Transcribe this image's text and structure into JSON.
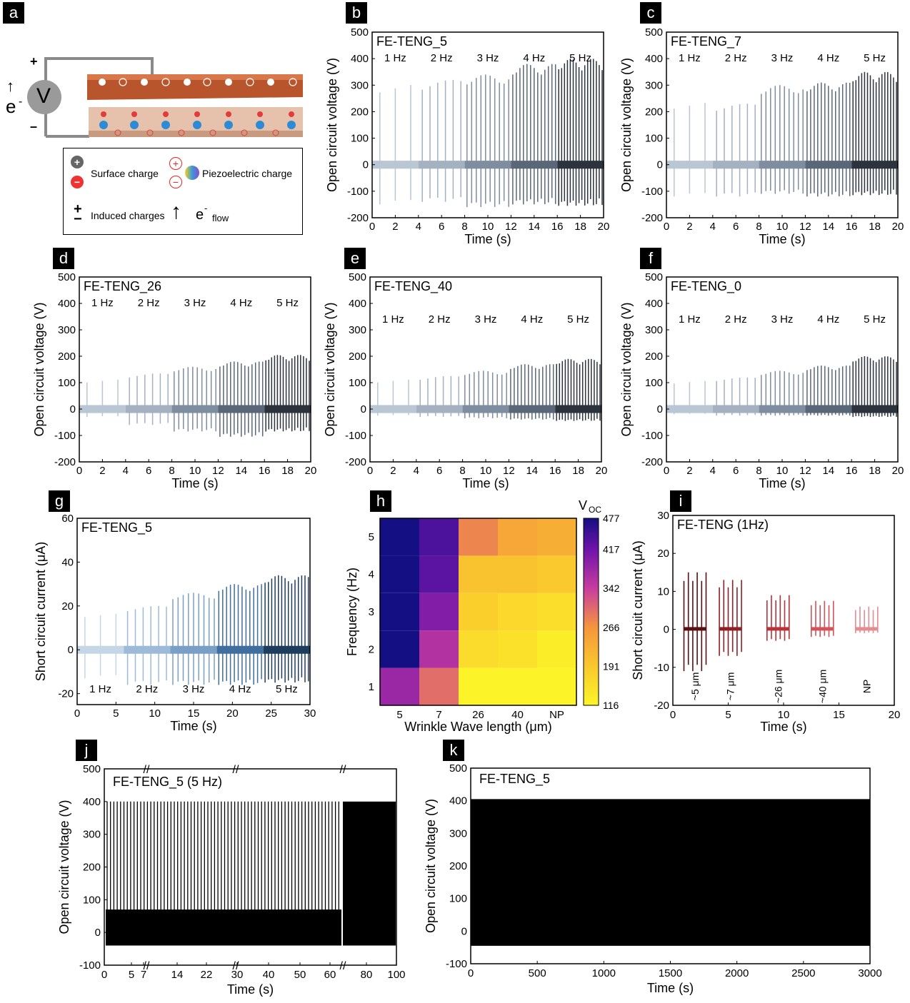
{
  "panel_letters": [
    "a",
    "b",
    "c",
    "d",
    "e",
    "f",
    "g",
    "h",
    "i",
    "j",
    "k"
  ],
  "schematic": {
    "surface_charge": "Surface charge",
    "piezo_charge": "Piezoelectric charge",
    "induced_charges": "Induced charges",
    "flow_e": "e",
    "flow_sup": "-",
    "flow_sub": "flow",
    "voltmeter": "V",
    "plus": "+",
    "minus": "–",
    "electron": "e",
    "electron_sup": "-"
  },
  "chart_data": [
    {
      "id": "b",
      "type": "line",
      "title": "FE-TENG_5",
      "xlabel": "Time (s)",
      "ylabel": "Open circuit voltage (V)",
      "xlim": [
        0,
        20
      ],
      "ylim": [
        -200,
        500
      ],
      "xticks": [
        0,
        2,
        4,
        6,
        8,
        10,
        12,
        14,
        16,
        18,
        20
      ],
      "yticks": [
        -200,
        -100,
        0,
        100,
        200,
        300,
        400,
        500
      ],
      "freq_labels": [
        "1 Hz",
        "2 Hz",
        "3 Hz",
        "4 Hz",
        "5 Hz"
      ],
      "peak_pos": [
        310,
        320,
        340,
        380,
        400
      ],
      "peak_neg": [
        -150,
        -140,
        -160,
        -150,
        -155
      ],
      "series_colors": [
        "#b9c6d3",
        "#a3b1c1",
        "#7f8da0",
        "#5a6778",
        "#2c333d"
      ]
    },
    {
      "id": "c",
      "type": "line",
      "title": "FE-TENG_7",
      "xlabel": "Time (s)",
      "ylabel": "Open circuit voltage (V)",
      "xlim": [
        0,
        20
      ],
      "ylim": [
        -200,
        500
      ],
      "xticks": [
        0,
        2,
        4,
        6,
        8,
        10,
        12,
        14,
        16,
        18,
        20
      ],
      "yticks": [
        -200,
        -100,
        0,
        100,
        200,
        300,
        400,
        500
      ],
      "freq_labels": [
        "1 Hz",
        "2 Hz",
        "3 Hz",
        "4 Hz",
        "5 Hz"
      ],
      "peak_pos": [
        240,
        230,
        300,
        310,
        350
      ],
      "peak_neg": [
        -120,
        -120,
        -110,
        -120,
        -115
      ],
      "series_colors": [
        "#b9c6d3",
        "#a3b1c1",
        "#7f8da0",
        "#5a6778",
        "#2c333d"
      ]
    },
    {
      "id": "d",
      "type": "line",
      "title": "FE-TENG_26",
      "xlabel": "Time (s)",
      "ylabel": "Open circuit voltage (V)",
      "xlim": [
        0,
        20
      ],
      "ylim": [
        -200,
        500
      ],
      "xticks": [
        0,
        2,
        4,
        6,
        8,
        10,
        12,
        14,
        16,
        18,
        20
      ],
      "yticks": [
        -200,
        -100,
        0,
        100,
        200,
        300,
        400,
        500
      ],
      "freq_labels": [
        "1 Hz",
        "2 Hz",
        "3 Hz",
        "4 Hz",
        "5 Hz"
      ],
      "peak_pos": [
        115,
        135,
        160,
        180,
        205
      ],
      "peak_neg": [
        -30,
        -60,
        -85,
        -105,
        -85
      ],
      "series_colors": [
        "#b9c6d3",
        "#a3b1c1",
        "#7f8da0",
        "#5a6778",
        "#2c333d"
      ]
    },
    {
      "id": "e",
      "type": "line",
      "title": "FE-TENG_40",
      "xlabel": "Time (s)",
      "ylabel": "Open circuit voltage (V)",
      "xlim": [
        0,
        20
      ],
      "ylim": [
        -200,
        500
      ],
      "xticks": [
        0,
        2,
        4,
        6,
        8,
        10,
        12,
        14,
        16,
        18,
        20
      ],
      "yticks": [
        -200,
        -100,
        0,
        100,
        200,
        300,
        400,
        500
      ],
      "freq_labels": [
        "1 Hz",
        "2 Hz",
        "3 Hz",
        "4 Hz",
        "5 Hz"
      ],
      "peak_pos": [
        115,
        125,
        145,
        170,
        190
      ],
      "peak_neg": [
        -25,
        -30,
        -35,
        -40,
        -45
      ],
      "series_colors": [
        "#b9c6d3",
        "#a3b1c1",
        "#7f8da0",
        "#5a6778",
        "#2c333d"
      ]
    },
    {
      "id": "f",
      "type": "line",
      "title": "FE-TENG_0",
      "xlabel": "Time (s)",
      "ylabel": "Open circuit voltage (V)",
      "xlim": [
        0,
        20
      ],
      "ylim": [
        -200,
        500
      ],
      "xticks": [
        0,
        2,
        4,
        6,
        8,
        10,
        12,
        14,
        16,
        18,
        20
      ],
      "yticks": [
        -200,
        -100,
        0,
        100,
        200,
        300,
        400,
        500
      ],
      "freq_labels": [
        "1 Hz",
        "2 Hz",
        "3 Hz",
        "4 Hz",
        "5 Hz"
      ],
      "peak_pos": [
        110,
        120,
        145,
        165,
        200
      ],
      "peak_neg": [
        -20,
        -25,
        -25,
        -25,
        -30
      ],
      "series_colors": [
        "#b9c6d3",
        "#a3b1c1",
        "#7f8da0",
        "#5a6778",
        "#2c333d"
      ]
    },
    {
      "id": "g",
      "type": "line",
      "title": "FE-TENG_5",
      "xlabel": "Time (s)",
      "ylabel": "Short circuit current (μA)",
      "xlim": [
        0,
        30
      ],
      "ylim": [
        -25,
        60
      ],
      "xticks": [
        0,
        5,
        10,
        15,
        20,
        25,
        30
      ],
      "yticks": [
        -20,
        0,
        20,
        40,
        60
      ],
      "freq_labels": [
        "1 Hz",
        "2 Hz",
        "3 Hz",
        "4 Hz",
        "5 Hz"
      ],
      "peak_pos": [
        17,
        20,
        26,
        30,
        34
      ],
      "peak_neg": [
        -13,
        -16,
        -16,
        -16,
        -15
      ],
      "series_colors": [
        "#c5d6e6",
        "#9dbbd8",
        "#7a9fc6",
        "#3f6e9f",
        "#1e3c5c"
      ]
    },
    {
      "id": "h",
      "type": "heatmap",
      "title": "",
      "xlabel": "Wrinkle Wave length (μm)",
      "ylabel": "Frequency (Hz)",
      "colorbar_label": "V",
      "colorbar_sub": "OC",
      "categories": [
        "5",
        "7",
        "26",
        "40",
        "NP"
      ],
      "y": [
        "1",
        "2",
        "3",
        "4",
        "5"
      ],
      "values": [
        [
          380,
          300,
          120,
          120,
          120
        ],
        [
          477,
          360,
          160,
          150,
          130
        ],
        [
          477,
          400,
          180,
          165,
          155
        ],
        [
          477,
          430,
          200,
          200,
          190
        ],
        [
          477,
          440,
          280,
          240,
          230
        ]
      ],
      "colorbar_ticks": [
        477,
        417,
        342,
        266,
        191,
        116
      ],
      "vmin": 116,
      "vmax": 477
    },
    {
      "id": "i",
      "type": "line",
      "title": "FE-TENG (1Hz)",
      "xlabel": "Time (s)",
      "ylabel": "Short circuit current (μA)",
      "xlim": [
        0,
        20
      ],
      "ylim": [
        -20,
        30
      ],
      "xticks": [
        0,
        5,
        10,
        15,
        20
      ],
      "yticks": [
        -20,
        -10,
        0,
        10,
        20,
        30
      ],
      "group_labels": [
        "~5 μm",
        "~7 μm",
        "~26 μm",
        "~40 μm",
        "NP"
      ],
      "peak_pos": [
        15,
        13,
        9,
        7.5,
        6
      ],
      "peak_neg": [
        -11,
        -7,
        -3,
        -2,
        -1
      ],
      "series_colors": [
        "#5a0f12",
        "#8e2127",
        "#b8323a",
        "#d4535a",
        "#e48c90"
      ]
    },
    {
      "id": "j",
      "type": "line",
      "title": "FE-TENG_5 (5 Hz)",
      "xlabel": "Time (s)",
      "ylabel": "Open circuit voltage (V)",
      "ylim": [
        -100,
        500
      ],
      "xtick_labels": [
        "0",
        "5",
        "7",
        "14",
        "22",
        "30",
        "40",
        "50",
        "60",
        "80",
        "100"
      ],
      "yticks": [
        -100,
        0,
        100,
        200,
        300,
        400,
        500
      ],
      "peak_pos": 400,
      "peak_neg": -40
    },
    {
      "id": "k",
      "type": "line",
      "title": "FE-TENG_5",
      "xlabel": "Time (s)",
      "ylabel": "Open circuit voltage (V)",
      "xlim": [
        0,
        3000
      ],
      "ylim": [
        -100,
        500
      ],
      "xticks": [
        0,
        500,
        1000,
        1500,
        2000,
        2500,
        3000
      ],
      "yticks": [
        -100,
        0,
        100,
        200,
        300,
        400,
        500
      ],
      "peak_pos": 405,
      "peak_neg": -45
    }
  ]
}
